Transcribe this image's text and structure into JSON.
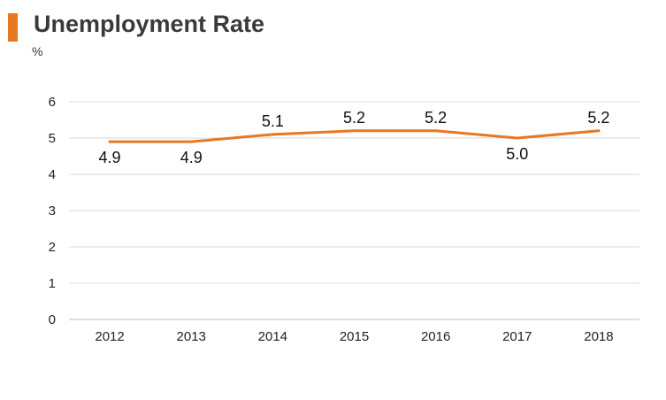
{
  "title": "Unemployment Rate",
  "unit_label": "%",
  "colors": {
    "accent": "#e87722",
    "line": "#e87722",
    "grid": "#d9d9d9",
    "axis": "#bfbfbf"
  },
  "chart_data": {
    "type": "line",
    "title": "Unemployment Rate",
    "xlabel": "",
    "ylabel": "%",
    "categories": [
      "2012",
      "2013",
      "2014",
      "2015",
      "2016",
      "2017",
      "2018"
    ],
    "series": [
      {
        "values": [
          4.9,
          4.9,
          5.1,
          5.2,
          5.2,
          5.0,
          5.2
        ],
        "data_labels": [
          "4.9",
          "4.9",
          "5.1",
          "5.2",
          "5.2",
          "5.0",
          "5.2"
        ]
      }
    ],
    "ylim": [
      0,
      6
    ],
    "yticks": [
      "0",
      "1",
      "2",
      "3",
      "4",
      "5",
      "6"
    ],
    "grid": true,
    "legend": "none"
  }
}
